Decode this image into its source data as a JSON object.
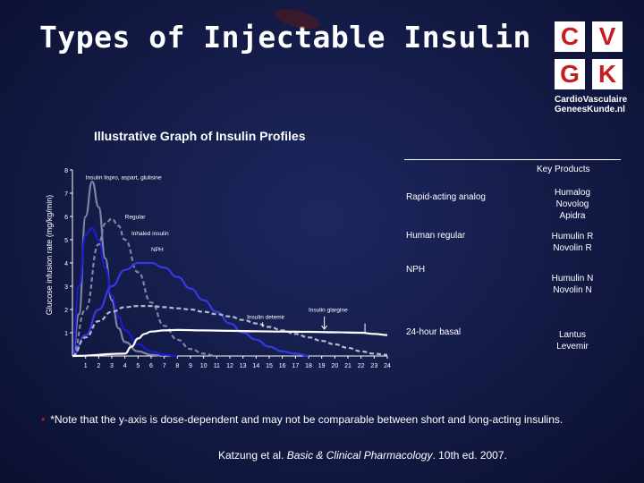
{
  "slide": {
    "title": "Types of Injectable Insulin",
    "note": "*Note that the y-axis is dose-dependent and may not be comparable between short and long-acting insulins.",
    "citation_authors": "Katzung et al. ",
    "citation_title": "Basic & Clinical Pharmacology",
    "citation_edition": ". 10th ed. 2007."
  },
  "logo": {
    "letters": [
      "C",
      "V",
      "G",
      "K"
    ],
    "line1": "CardioVasculaire",
    "line2": "GeneesKunde.nl"
  },
  "key_products": {
    "header": "Key Products",
    "rows": [
      {
        "category": "Rapid-acting analog",
        "products": [
          "Humalog",
          "Novolog",
          "Apidra"
        ]
      },
      {
        "category": "Human regular",
        "products": [
          "Humulin R",
          "Novolin R"
        ]
      },
      {
        "category": "NPH",
        "products": [
          "Humulin N",
          "Novolin N"
        ]
      },
      {
        "category": "24-hour basal",
        "products": [
          "Lantus",
          "Levemir"
        ]
      }
    ]
  },
  "colors": {
    "dark_blue": "#1a1ccf",
    "blue": "#3538e6",
    "gray": "#7f84a6",
    "light_gray": "#b4b8cc",
    "white": "#ffffff",
    "logo_red": "#c41e1e"
  },
  "chart_data": {
    "type": "line",
    "title": "Illustrative Graph of Insulin Profiles",
    "xlabel": "",
    "ylabel": "Glucose infusion rate (mg/kg/min)",
    "xlim": [
      0,
      24
    ],
    "ylim": [
      0,
      8
    ],
    "x_ticks": [
      1,
      2,
      3,
      4,
      5,
      6,
      7,
      8,
      9,
      10,
      11,
      12,
      13,
      14,
      15,
      16,
      17,
      18,
      19,
      20,
      21,
      22,
      23,
      24
    ],
    "y_ticks": [
      1,
      2,
      3,
      4,
      5,
      6,
      7,
      8
    ],
    "series": [
      {
        "name": "Insulin lispro, aspart, glulisine",
        "color": "#7f84a6",
        "dashed": false,
        "x": [
          0,
          0.5,
          1,
          1.5,
          2,
          2.5,
          3,
          3.5,
          4,
          5,
          6,
          7
        ],
        "y": [
          0,
          1.8,
          6.0,
          7.5,
          6.4,
          4.2,
          2.4,
          1.2,
          0.6,
          0.2,
          0.05,
          0
        ]
      },
      {
        "name": "Inhaled insulin",
        "color": "#1a1ccf",
        "dashed": false,
        "x": [
          0,
          0.5,
          1,
          1.5,
          2,
          2.5,
          3,
          3.5,
          4,
          5,
          6,
          7,
          8
        ],
        "y": [
          0,
          3.0,
          5.2,
          5.5,
          5.0,
          3.8,
          2.6,
          1.7,
          1.1,
          0.5,
          0.2,
          0.05,
          0
        ]
      },
      {
        "name": "Regular",
        "color": "#7f84a6",
        "dashed": true,
        "x": [
          0,
          1,
          2,
          2.5,
          3,
          3.5,
          4,
          5,
          6,
          7,
          8,
          9,
          10,
          11
        ],
        "y": [
          0,
          2.0,
          4.8,
          5.7,
          5.9,
          5.6,
          5.0,
          3.6,
          2.3,
          1.3,
          0.7,
          0.3,
          0.1,
          0
        ]
      },
      {
        "name": "NPH",
        "color": "#3538e6",
        "dashed": false,
        "x": [
          0,
          1,
          2,
          3,
          4,
          5,
          6,
          7,
          8,
          9,
          10,
          11,
          12,
          13,
          14,
          15,
          16,
          17,
          18
        ],
        "y": [
          0,
          0.9,
          2.0,
          3.0,
          3.7,
          4.0,
          4.0,
          3.8,
          3.4,
          2.9,
          2.4,
          1.9,
          1.4,
          1.0,
          0.7,
          0.4,
          0.2,
          0.1,
          0
        ]
      },
      {
        "name": "Insulin detemir",
        "color": "#b4b8cc",
        "dashed": true,
        "x": [
          0,
          1,
          2,
          3,
          4,
          5,
          6,
          7,
          8,
          9,
          10,
          11,
          12,
          13,
          14,
          15,
          16,
          17,
          18,
          19,
          20,
          21,
          22,
          23,
          24
        ],
        "y": [
          0,
          0.8,
          1.5,
          1.9,
          2.1,
          2.15,
          2.15,
          2.1,
          2.05,
          2.0,
          1.9,
          1.8,
          1.7,
          1.55,
          1.4,
          1.25,
          1.1,
          0.95,
          0.8,
          0.65,
          0.5,
          0.35,
          0.2,
          0.1,
          0.05
        ]
      },
      {
        "name": "Insulin glargine",
        "color": "#ffffff",
        "dashed": false,
        "x": [
          0,
          4,
          4.5,
          5,
          5.5,
          6,
          7,
          8,
          10,
          12,
          14,
          16,
          18,
          20,
          22,
          23,
          24
        ],
        "y": [
          0,
          0.1,
          0.4,
          0.75,
          0.95,
          1.05,
          1.1,
          1.12,
          1.1,
          1.08,
          1.06,
          1.05,
          1.04,
          1.02,
          1.0,
          0.95,
          0.9
        ]
      }
    ],
    "annotations": [
      {
        "text": "Insulin lispro, aspart, glulisine",
        "x": 1.0,
        "y": 7.6
      },
      {
        "text": "Regular",
        "x": 4.0,
        "y": 5.9
      },
      {
        "text": "Inhaled insulin",
        "x": 4.5,
        "y": 5.2
      },
      {
        "text": "NPH",
        "x": 6.0,
        "y": 4.5
      },
      {
        "text": "Insulin detemir",
        "x": 13.3,
        "y": 1.6
      },
      {
        "text": "Insulin glargine",
        "x": 18.0,
        "y": 1.9
      }
    ]
  }
}
